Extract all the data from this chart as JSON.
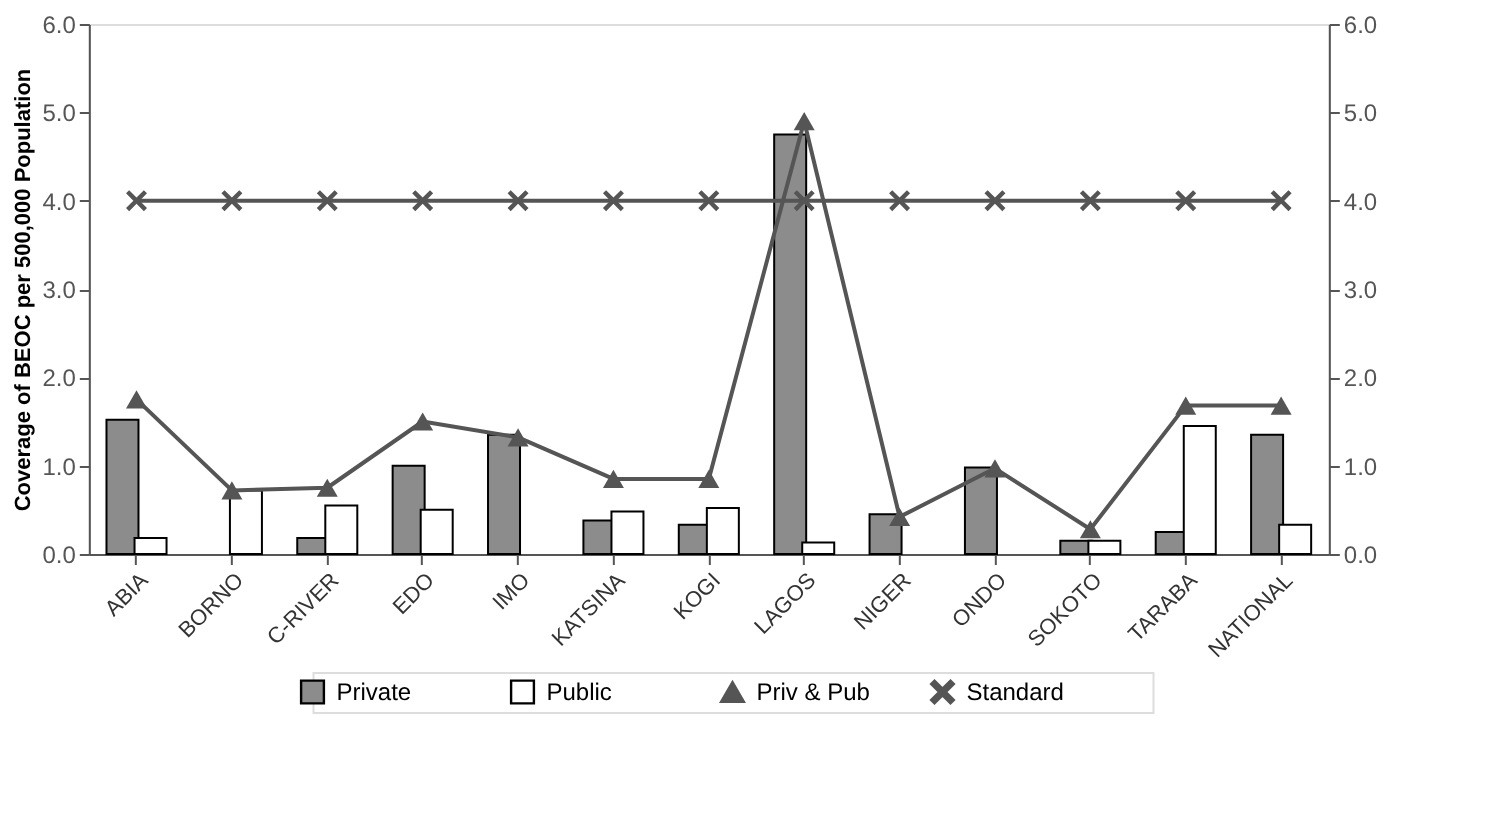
{
  "chart_data": {
    "type": "bar",
    "ylabel": "Coverage of BEOC per 500,000 Population",
    "categories": [
      "ABIA",
      "BORNO",
      "C-RIVER",
      "EDO",
      "IMO",
      "KATSINA",
      "KOGI",
      "LAGOS",
      "NIGER",
      "ONDO",
      "SOKOTO",
      "TARABA",
      "NATIONAL"
    ],
    "series": [
      {
        "name": "Private",
        "type": "bar",
        "color": "#8c8c8c",
        "values": [
          1.52,
          0,
          0.18,
          1.0,
          1.35,
          0.38,
          0.33,
          4.75,
          0.45,
          0.98,
          0.15,
          0.25,
          1.35
        ]
      },
      {
        "name": "Public",
        "type": "bar",
        "color": "#ffffff",
        "values": [
          0.18,
          0.72,
          0.55,
          0.5,
          0,
          0.48,
          0.52,
          0.13,
          0,
          0,
          0.15,
          1.45,
          0.33
        ]
      },
      {
        "name": "Priv & Pub",
        "type": "line",
        "marker": "triangle",
        "color": "#555555",
        "values": [
          1.75,
          0.72,
          0.75,
          1.5,
          1.32,
          0.85,
          0.85,
          4.9,
          0.42,
          0.97,
          0.28,
          1.68,
          1.68
        ]
      },
      {
        "name": "Standard",
        "type": "line",
        "marker": "cross",
        "color": "#555555",
        "values": [
          4,
          4,
          4,
          4,
          4,
          4,
          4,
          4,
          4,
          4,
          4,
          4,
          4
        ]
      }
    ],
    "ylim": [
      0,
      6
    ],
    "yticks": [
      {
        "value": 0,
        "label": "0.0"
      },
      {
        "value": 1,
        "label": "1.0"
      },
      {
        "value": 2,
        "label": "2.0"
      },
      {
        "value": 3,
        "label": "3.0"
      },
      {
        "value": 4,
        "label": "4.0"
      },
      {
        "value": 5,
        "label": "5.0"
      },
      {
        "value": 6,
        "label": "6.0"
      }
    ],
    "y2lim": [
      0,
      6
    ],
    "y2ticks": [
      {
        "value": 0,
        "label": "0.0"
      },
      {
        "value": 1,
        "label": "1.0"
      },
      {
        "value": 2,
        "label": "2.0"
      },
      {
        "value": 3,
        "label": "3.0"
      },
      {
        "value": 4,
        "label": "4.0"
      },
      {
        "value": 5,
        "label": "5.0"
      },
      {
        "value": 6,
        "label": "6.0"
      }
    ],
    "grid": false,
    "legend": "bottom"
  }
}
